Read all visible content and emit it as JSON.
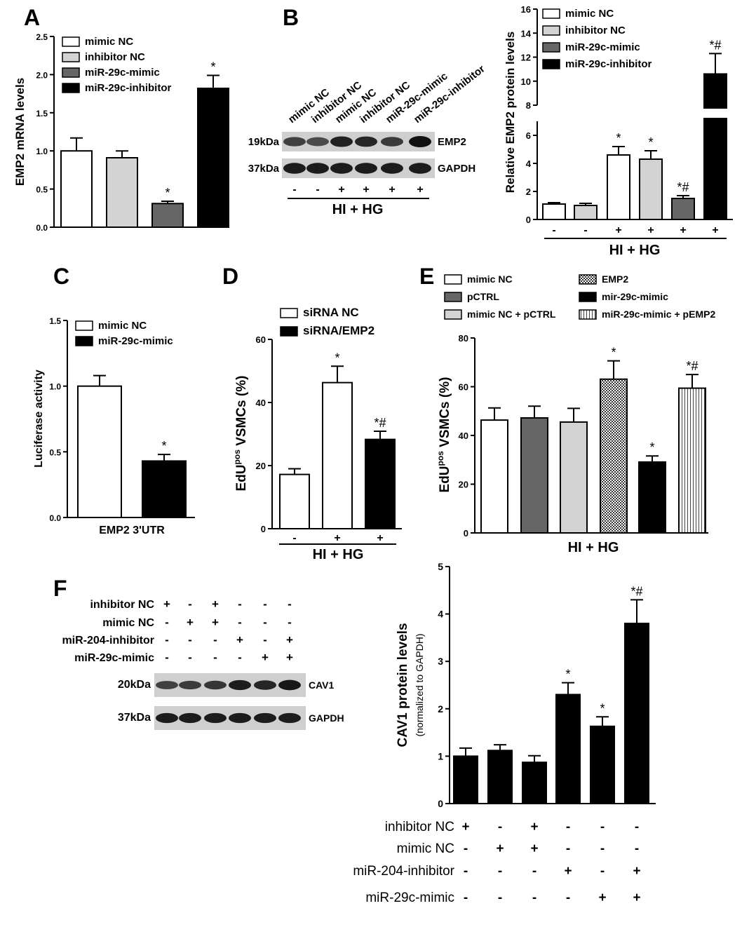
{
  "figure": {
    "panel_labels": [
      "A",
      "B",
      "C",
      "D",
      "E",
      "F"
    ],
    "hi_hg_label": "HI + HG"
  },
  "colors": {
    "white": "#ffffff",
    "light_gray": "#d3d3d3",
    "dark_gray": "#666666",
    "black": "#000000"
  },
  "chart_data": [
    {
      "id": "A",
      "type": "bar",
      "ylabel": "EMP2 mRNA levels",
      "ylim": [
        0,
        2.5
      ],
      "yticks": [
        "0.0",
        "0.5",
        "1.0",
        "1.5",
        "2.0",
        "2.5"
      ],
      "categories": [
        "mimic NC",
        "inhibitor NC",
        "miR-29c-mimic",
        "miR-29c-inhibitor"
      ],
      "values": [
        1.0,
        0.91,
        0.31,
        1.82
      ],
      "errors": [
        0.17,
        0.09,
        0.03,
        0.17
      ],
      "annotations": [
        "",
        "",
        "*",
        "*"
      ],
      "legend": [
        "mimic NC",
        "inhibitor NC",
        "miR-29c-mimic",
        "miR-29c-inhibitor"
      ],
      "legend_placement": "top-left"
    },
    {
      "id": "B",
      "type": "bar",
      "ylabel": "Relative EMP2 protein levels",
      "xlabel": "HI + HG",
      "axis_break": [
        7,
        8
      ],
      "ylim": [
        0,
        16
      ],
      "yticks_lower": [
        "0",
        "2",
        "4",
        "6"
      ],
      "yticks_upper": [
        "8",
        "10",
        "12",
        "14",
        "16"
      ],
      "categories": [
        "mimic NC",
        "inhibitor NC",
        "mimic NC",
        "inhibitor NC",
        "miR-29c-mimic",
        "miR-29c-inhibitor"
      ],
      "condition": [
        "-",
        "-",
        "+",
        "+",
        "+",
        "+"
      ],
      "values": [
        1.1,
        1.0,
        4.6,
        4.3,
        1.5,
        10.6
      ],
      "errors": [
        0.1,
        0.15,
        0.6,
        0.6,
        0.2,
        1.7
      ],
      "annotations": [
        "",
        "",
        "*",
        "*",
        "*#",
        "*#"
      ],
      "legend": [
        "mimic NC",
        "inhibitor NC",
        "miR-29c-mimic",
        "miR-29c-inhibitor"
      ],
      "legend_placement": "top-left"
    },
    {
      "id": "C",
      "type": "bar",
      "ylabel": "Luciferase activity",
      "xlabel": "EMP2 3'UTR",
      "ylim": [
        0,
        1.5
      ],
      "yticks": [
        "0.0",
        "0.5",
        "1.0",
        "1.5"
      ],
      "categories": [
        "mimic NC",
        "miR-29c-mimic"
      ],
      "values": [
        1.0,
        0.43
      ],
      "errors": [
        0.08,
        0.05
      ],
      "annotations": [
        "",
        "*"
      ],
      "legend": [
        "mimic NC",
        "miR-29c-mimic"
      ],
      "legend_placement": "top-left"
    },
    {
      "id": "D",
      "type": "bar",
      "ylabel_main": "EdU",
      "ylabel_sup": "pos",
      "ylabel_rest": " VSMCs (%)",
      "xlabel": "HI + HG",
      "ylim": [
        0,
        60
      ],
      "yticks": [
        "0",
        "20",
        "40",
        "60"
      ],
      "categories": [
        "siRNA NC",
        "siRNA NC",
        "siRNA/EMP2"
      ],
      "condition": [
        "-",
        "+",
        "+"
      ],
      "values": [
        17.2,
        46.3,
        28.3
      ],
      "errors": [
        1.8,
        5.2,
        2.6
      ],
      "annotations": [
        "",
        "*",
        "*#"
      ],
      "legend": [
        "siRNA NC",
        "siRNA/EMP2"
      ],
      "legend_placement": "top-left"
    },
    {
      "id": "E",
      "type": "bar",
      "ylabel_main": "EdU",
      "ylabel_sup": "pos",
      "ylabel_rest": " VSMCs (%)",
      "xlabel": "HI + HG",
      "ylim": [
        0,
        80
      ],
      "yticks": [
        "0",
        "20",
        "40",
        "60",
        "80"
      ],
      "categories": [
        "mimic NC",
        "pCTRL",
        "mimic NC + pCTRL",
        "EMP2",
        "mir-29c-mimic",
        "miR-29c-mimic + pEMP2"
      ],
      "values": [
        46.3,
        47.2,
        45.5,
        63.1,
        29.1,
        59.4
      ],
      "errors": [
        5.0,
        4.8,
        5.6,
        7.5,
        2.5,
        5.6
      ],
      "annotations": [
        "",
        "",
        "",
        "*",
        "*",
        "*#"
      ],
      "legend": [
        "mimic NC",
        "pCTRL",
        "mimic NC + pCTRL",
        "EMP2",
        "mir-29c-mimic",
        "miR-29c-mimic + pEMP2"
      ],
      "legend_placement": "top"
    },
    {
      "id": "F",
      "type": "bar",
      "ylabel": "CAV1 protein levels",
      "ylabel2": "(normalized to GAPDH)",
      "ylim": [
        0,
        5
      ],
      "yticks": [
        "0",
        "1",
        "2",
        "3",
        "4",
        "5"
      ],
      "values": [
        1.0,
        1.12,
        0.87,
        2.3,
        1.63,
        3.8
      ],
      "errors": [
        0.17,
        0.12,
        0.14,
        0.25,
        0.2,
        0.5
      ],
      "annotations": [
        "",
        "",
        "",
        "*",
        "*",
        "*#"
      ],
      "conditions": [
        {
          "label": "inhibitor NC",
          "signs": [
            "+",
            "-",
            "+",
            "-",
            "-",
            "-"
          ]
        },
        {
          "label": "mimic NC",
          "signs": [
            "-",
            "+",
            "+",
            "-",
            "-",
            "-"
          ]
        },
        {
          "label": "miR-204-inhibitor",
          "signs": [
            "-",
            "-",
            "-",
            "+",
            "-",
            "+"
          ]
        },
        {
          "label": "miR-29c-mimic",
          "signs": [
            "-",
            "-",
            "-",
            "-",
            "+",
            "+"
          ]
        }
      ]
    }
  ],
  "blots": {
    "B": {
      "lanes": [
        "mimic NC",
        "inhibitor NC",
        "mimic NC",
        "inhibitor NC",
        "miR-29c-mimic",
        "miR-29c-inhibitor"
      ],
      "condition": [
        "-",
        "-",
        "+",
        "+",
        "+",
        "+"
      ],
      "rows": [
        {
          "mw": "19kDa",
          "protein": "EMP2",
          "intensity": [
            0.55,
            0.45,
            0.85,
            0.8,
            0.6,
            1.0
          ]
        },
        {
          "mw": "37kDa",
          "protein": "GAPDH",
          "intensity": [
            0.9,
            0.9,
            0.9,
            0.9,
            0.9,
            0.9
          ]
        }
      ]
    },
    "F": {
      "conditions": [
        {
          "label": "inhibitor NC",
          "signs": [
            "+",
            "-",
            "+",
            "-",
            "-",
            "-"
          ]
        },
        {
          "label": "mimic NC",
          "signs": [
            "-",
            "+",
            "+",
            "-",
            "-",
            "-"
          ]
        },
        {
          "label": "miR-204-inhibitor",
          "signs": [
            "-",
            "-",
            "-",
            "+",
            "-",
            "+"
          ]
        },
        {
          "label": "miR-29c-mimic",
          "signs": [
            "-",
            "-",
            "-",
            "-",
            "+",
            "+"
          ]
        }
      ],
      "rows": [
        {
          "mw": "20kDa",
          "protein": "CAV1",
          "intensity": [
            0.55,
            0.6,
            0.65,
            0.9,
            0.8,
            0.95
          ]
        },
        {
          "mw": "37kDa",
          "protein": "GAPDH",
          "intensity": [
            0.9,
            0.9,
            0.9,
            0.9,
            0.9,
            0.9
          ]
        }
      ]
    }
  }
}
